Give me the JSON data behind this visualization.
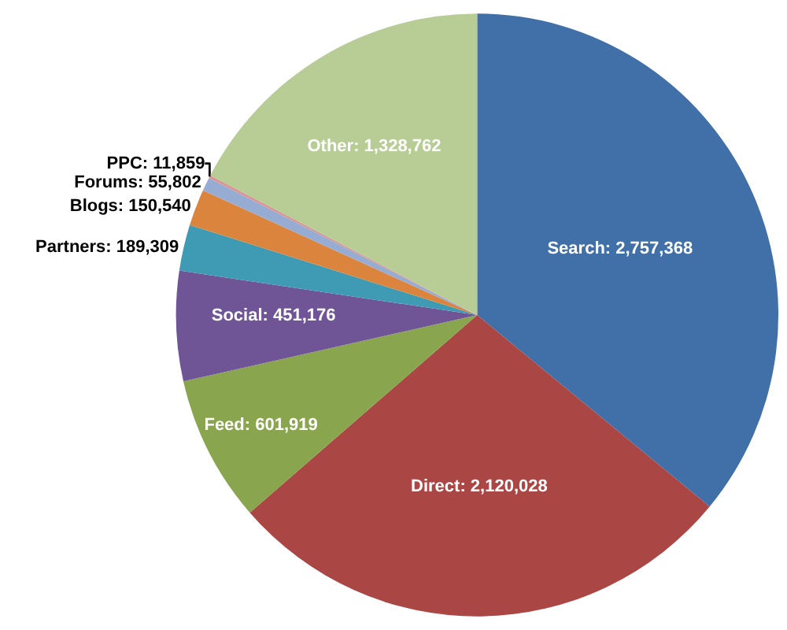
{
  "chart_data": {
    "type": "pie",
    "categories": [
      "Search",
      "Direct",
      "Feed",
      "Social",
      "Partners",
      "Blogs",
      "Forums",
      "PPC",
      "Other"
    ],
    "values": [
      2757368,
      2120028,
      601919,
      451176,
      189309,
      150540,
      55802,
      11859,
      1328762
    ],
    "colors": [
      "#4170a8",
      "#aa4644",
      "#89a54e",
      "#6f5596",
      "#3f9bb3",
      "#db843d",
      "#97acd3",
      "#d99694",
      "#b7cd95"
    ],
    "value_labels": [
      "2,757,368",
      "2,120,028",
      "601,919",
      "451,176",
      "189,309",
      "150,540",
      "55,802",
      "11,859",
      "1,328,762"
    ],
    "legend": false
  }
}
